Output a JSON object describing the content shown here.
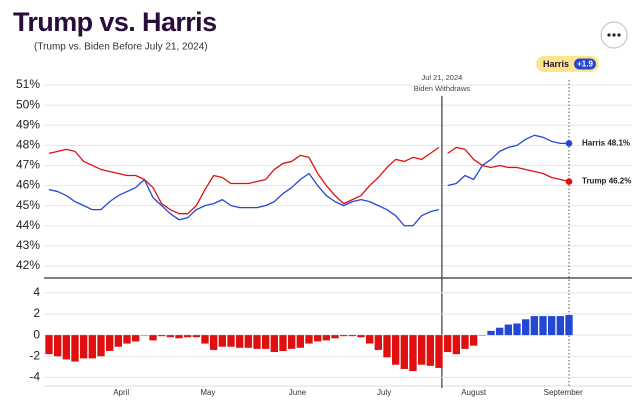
{
  "header": {
    "title": "Trump vs. Harris",
    "subtitle": "(Trump vs. Biden Before July 21, 2024)"
  },
  "lead": {
    "name": "Harris",
    "margin": "+1.9"
  },
  "chart_data": [
    {
      "type": "line",
      "x": [
        "2024-03-07",
        "2024-03-10",
        "2024-03-13",
        "2024-03-16",
        "2024-03-19",
        "2024-03-22",
        "2024-03-25",
        "2024-03-28",
        "2024-03-31",
        "2024-04-03",
        "2024-04-06",
        "2024-04-09",
        "2024-04-12",
        "2024-04-15",
        "2024-04-18",
        "2024-04-21",
        "2024-04-24",
        "2024-04-27",
        "2024-04-30",
        "2024-05-03",
        "2024-05-06",
        "2024-05-09",
        "2024-05-12",
        "2024-05-15",
        "2024-05-18",
        "2024-05-21",
        "2024-05-24",
        "2024-05-27",
        "2024-05-30",
        "2024-06-02",
        "2024-06-05",
        "2024-06-08",
        "2024-06-11",
        "2024-06-14",
        "2024-06-17",
        "2024-06-20",
        "2024-06-23",
        "2024-06-26",
        "2024-06-29",
        "2024-07-02",
        "2024-07-05",
        "2024-07-08",
        "2024-07-11",
        "2024-07-14",
        "2024-07-17",
        "2024-07-20",
        "2024-07-21",
        "2024-07-23",
        "2024-07-26",
        "2024-07-29",
        "2024-08-01",
        "2024-08-04",
        "2024-08-07",
        "2024-08-10",
        "2024-08-13",
        "2024-08-16",
        "2024-08-19",
        "2024-08-22",
        "2024-08-25",
        "2024-08-28",
        "2024-08-31",
        "2024-09-03"
      ],
      "series": [
        {
          "name": "Harris",
          "color": "#2548d4",
          "end_value_label": "48.1%",
          "values": [
            45.8,
            45.7,
            45.5,
            45.2,
            45.0,
            44.8,
            44.8,
            45.2,
            45.5,
            45.7,
            45.9,
            46.3,
            45.4,
            45.0,
            44.6,
            44.3,
            44.4,
            44.8,
            45.0,
            45.1,
            45.3,
            45.0,
            44.9,
            44.9,
            44.9,
            45.0,
            45.2,
            45.6,
            45.9,
            46.3,
            46.6,
            46.0,
            45.5,
            45.2,
            45.0,
            45.2,
            45.3,
            45.2,
            45.0,
            44.8,
            44.5,
            44.0,
            44.0,
            44.5,
            44.7,
            44.8,
            null,
            46.0,
            46.1,
            46.5,
            46.3,
            47.0,
            47.3,
            47.7,
            47.9,
            48.0,
            48.3,
            48.5,
            48.4,
            48.2,
            48.1,
            48.1
          ]
        },
        {
          "name": "Trump",
          "color": "#e01010",
          "end_value_label": "46.2%",
          "values": [
            47.6,
            47.7,
            47.8,
            47.7,
            47.2,
            47.0,
            46.8,
            46.7,
            46.6,
            46.5,
            46.5,
            46.3,
            45.9,
            45.1,
            44.8,
            44.6,
            44.6,
            45.0,
            45.8,
            46.5,
            46.4,
            46.1,
            46.1,
            46.1,
            46.2,
            46.3,
            46.8,
            47.1,
            47.2,
            47.5,
            47.4,
            46.6,
            46.0,
            45.5,
            45.1,
            45.3,
            45.5,
            46.0,
            46.4,
            46.9,
            47.3,
            47.2,
            47.4,
            47.3,
            47.6,
            47.9,
            null,
            47.6,
            47.9,
            47.8,
            47.3,
            47.0,
            46.9,
            47.0,
            46.9,
            46.9,
            46.8,
            46.7,
            46.6,
            46.4,
            46.3,
            46.2
          ]
        }
      ],
      "xlim": [
        "2024-03-07",
        "2024-09-03"
      ],
      "ylim": [
        41.4,
        51.5
      ],
      "yticks": [
        {
          "value": 42,
          "label": "42%"
        },
        {
          "value": 43,
          "label": "43%"
        },
        {
          "value": 44,
          "label": "44%"
        },
        {
          "value": 45,
          "label": "45%"
        },
        {
          "value": 46,
          "label": "46%"
        },
        {
          "value": 47,
          "label": "47%"
        },
        {
          "value": 48,
          "label": "48%"
        },
        {
          "value": 49,
          "label": "49%"
        },
        {
          "value": 50,
          "label": "50%"
        },
        {
          "value": 51,
          "label": "51%"
        }
      ],
      "grid": true,
      "annotation": {
        "x": "2024-07-21",
        "lines": [
          "Jul 21, 2024",
          "Biden Withdraws"
        ]
      }
    },
    {
      "type": "bar",
      "x": [
        "2024-03-07",
        "2024-03-10",
        "2024-03-13",
        "2024-03-16",
        "2024-03-19",
        "2024-03-22",
        "2024-03-25",
        "2024-03-28",
        "2024-03-31",
        "2024-04-03",
        "2024-04-06",
        "2024-04-09",
        "2024-04-12",
        "2024-04-15",
        "2024-04-18",
        "2024-04-21",
        "2024-04-24",
        "2024-04-27",
        "2024-04-30",
        "2024-05-03",
        "2024-05-06",
        "2024-05-09",
        "2024-05-12",
        "2024-05-15",
        "2024-05-18",
        "2024-05-21",
        "2024-05-24",
        "2024-05-27",
        "2024-05-30",
        "2024-06-02",
        "2024-06-05",
        "2024-06-08",
        "2024-06-11",
        "2024-06-14",
        "2024-06-17",
        "2024-06-20",
        "2024-06-23",
        "2024-06-26",
        "2024-06-29",
        "2024-07-02",
        "2024-07-05",
        "2024-07-08",
        "2024-07-11",
        "2024-07-14",
        "2024-07-17",
        "2024-07-20",
        "2024-07-21",
        "2024-07-23",
        "2024-07-26",
        "2024-07-29",
        "2024-08-01",
        "2024-08-04",
        "2024-08-07",
        "2024-08-10",
        "2024-08-13",
        "2024-08-16",
        "2024-08-19",
        "2024-08-22",
        "2024-08-25",
        "2024-08-28",
        "2024-08-31",
        "2024-09-03"
      ],
      "values": [
        -1.8,
        -2.0,
        -2.3,
        -2.5,
        -2.2,
        -2.2,
        -2.0,
        -1.5,
        -1.1,
        -0.8,
        -0.6,
        0.0,
        -0.5,
        -0.1,
        -0.2,
        -0.3,
        -0.2,
        -0.2,
        -0.8,
        -1.4,
        -1.1,
        -1.1,
        -1.2,
        -1.2,
        -1.3,
        -1.3,
        -1.6,
        -1.5,
        -1.3,
        -1.2,
        -0.8,
        -0.6,
        -0.5,
        -0.3,
        -0.1,
        -0.1,
        -0.2,
        -0.8,
        -1.4,
        -2.1,
        -2.8,
        -3.2,
        -3.4,
        -2.8,
        -2.9,
        -3.1,
        null,
        -1.6,
        -1.8,
        -1.3,
        -1.0,
        0.0,
        0.4,
        0.7,
        1.0,
        1.1,
        1.5,
        1.8,
        1.8,
        1.8,
        1.8,
        1.9
      ],
      "positive_color": "#2548d4",
      "negative_color": "#e01010",
      "xlim": [
        "2024-03-07",
        "2024-09-03"
      ],
      "ylim": [
        -5,
        5.4
      ],
      "yticks": [
        -4,
        -2,
        0,
        2,
        4
      ],
      "xticks": [
        {
          "value": "2024-04-01",
          "label": "April"
        },
        {
          "value": "2024-05-01",
          "label": "May"
        },
        {
          "value": "2024-06-01",
          "label": "June"
        },
        {
          "value": "2024-07-01",
          "label": "July"
        },
        {
          "value": "2024-08-01",
          "label": "August"
        },
        {
          "value": "2024-09-01",
          "label": "September"
        }
      ],
      "grid": true
    }
  ]
}
